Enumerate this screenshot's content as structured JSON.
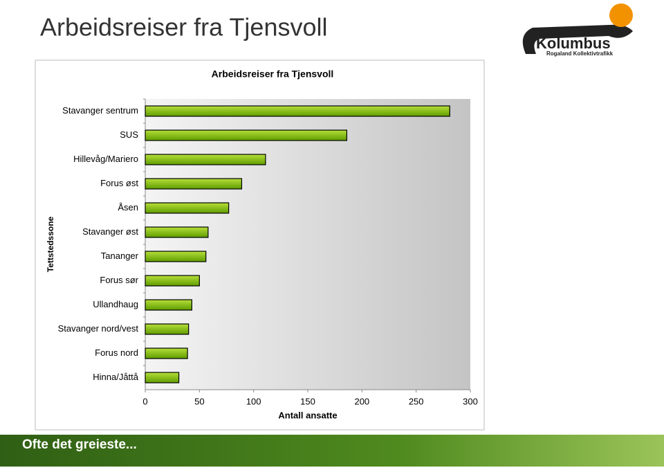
{
  "slide": {
    "title": "Arbeidsreiser fra Tjensvoll",
    "logo_name": "Kolumbus",
    "logo_subtitle": "Rogaland Kollektivtrafikk",
    "footer": "Ofte det greieste..."
  },
  "chart_data": {
    "type": "barh",
    "title": "Arbeidsreiser fra Tjensvoll",
    "xlabel": "Antall ansatte",
    "ylabel": "Tettstedssone",
    "categories": [
      "Stavanger sentrum",
      "SUS",
      "Hillevåg/Mariero",
      "Forus øst",
      "Åsen",
      "Stavanger øst",
      "Tananger",
      "Forus sør",
      "Ullandhaug",
      "Stavanger nord/vest",
      "Forus nord",
      "Hinna/Jåttå"
    ],
    "values": [
      281,
      186,
      111,
      89,
      77,
      58,
      56,
      50,
      43,
      40,
      39,
      31
    ],
    "color": "#7fbf0f",
    "xlim": [
      0,
      300
    ],
    "xticks": [
      0,
      50,
      100,
      150,
      200,
      250,
      300
    ]
  }
}
